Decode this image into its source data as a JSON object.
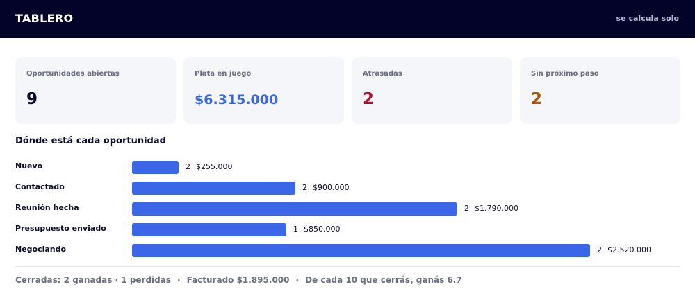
{
  "header": {
    "title": "TABLERO",
    "subtitle": "se calcula solo"
  },
  "colors": {
    "header_bg": "#03032a",
    "bar": "#3c66e8",
    "money": "#3c66e8",
    "late": "#b5122e",
    "no_next_step": "#a8570b"
  },
  "cards": [
    {
      "label": "Oportunidades abiertas",
      "value": "9"
    },
    {
      "label": "Plata en juego",
      "value": "$6.315.000"
    },
    {
      "label": "Atrasadas",
      "value": "2"
    },
    {
      "label": "Sin próximo paso",
      "value": "2"
    }
  ],
  "section_title": "Dónde está cada oportunidad",
  "chart_data": {
    "type": "bar",
    "categories": [
      "Nuevo",
      "Contactado",
      "Reunión hecha",
      "Presupuesto enviado",
      "Negociando"
    ],
    "series": [
      {
        "values": [
          255000,
          900000,
          1790000,
          850000,
          2520000
        ]
      }
    ],
    "counts": [
      2,
      2,
      2,
      1,
      2
    ],
    "amount_labels": [
      "$255.000",
      "$900.000",
      "$1.790.000",
      "$850.000",
      "$2.520.000"
    ]
  },
  "footer": {
    "closed": "Cerradas: 2 ganadas · 1 perdidas",
    "separator": "·",
    "billed": "Facturado $1.895.000",
    "rate": "De cada 10 que cerrás, ganás 6.7"
  }
}
